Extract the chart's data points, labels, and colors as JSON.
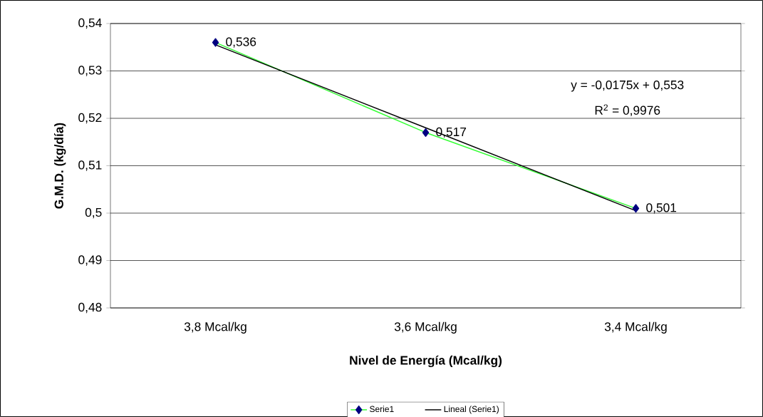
{
  "chart_data": {
    "type": "line",
    "xlabel": "Nivel de Energía (Mcal/kg)",
    "ylabel": "G.M.D. (kg/día)",
    "categories": [
      "3,8 Mcal/kg",
      "3,6 Mcal/kg",
      "3,4 Mcal/kg"
    ],
    "series": [
      {
        "name": "Serie1",
        "color": "#33ff33",
        "marker": "diamond",
        "values": [
          0.536,
          0.517,
          0.501
        ],
        "value_labels": [
          "0,536",
          "0,517",
          "0,501"
        ]
      },
      {
        "name": "Lineal (Serie1)",
        "color": "#000000",
        "marker": "none",
        "values": [
          0.5355,
          0.518,
          0.5005
        ]
      }
    ],
    "ylim": [
      0.48,
      0.54
    ],
    "yticks": [
      {
        "value": 0.48,
        "label": "0,48"
      },
      {
        "value": 0.49,
        "label": "0,49"
      },
      {
        "value": 0.5,
        "label": "0,5"
      },
      {
        "value": 0.51,
        "label": "0,51"
      },
      {
        "value": 0.52,
        "label": "0,52"
      },
      {
        "value": 0.53,
        "label": "0,53"
      },
      {
        "value": 0.54,
        "label": "0,54"
      }
    ],
    "grid": "y",
    "legend": "bottom",
    "annotations": [
      "y = -0,0175x + 0,553",
      "R$^{2}$ = 0,9976"
    ]
  }
}
